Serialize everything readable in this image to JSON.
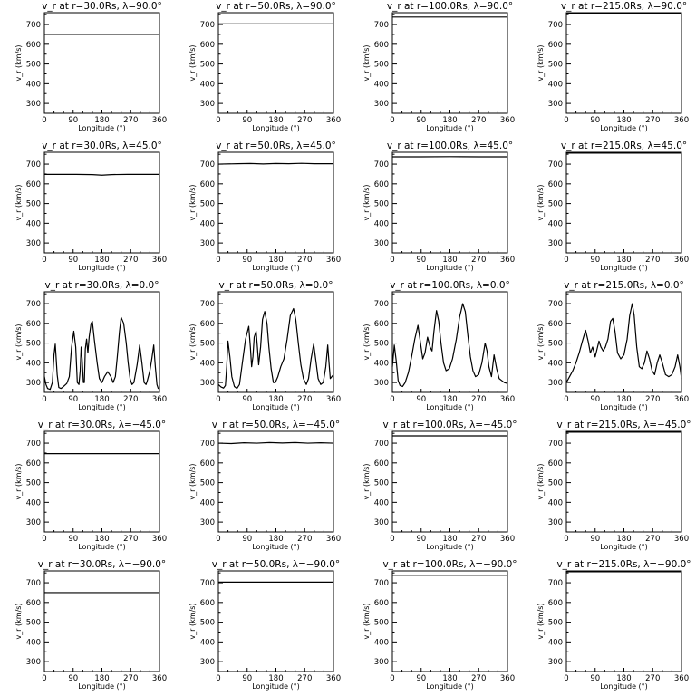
{
  "chart_data": {
    "type": "line",
    "layout": {
      "rows": 5,
      "cols": 4
    },
    "common": {
      "xlabel": "Longitude (°)",
      "ylabel": "v_r (km/s)",
      "xlim": [
        0,
        360
      ],
      "ylim": [
        250,
        760
      ],
      "xticks": [
        0,
        90,
        180,
        270,
        360
      ],
      "yticks": [
        300,
        400,
        500,
        600,
        700
      ]
    },
    "radii": [
      "30.0",
      "50.0",
      "100.0",
      "215.0"
    ],
    "latitudes": [
      "90.0",
      "45.0",
      "0.0",
      "-45.0",
      "-90.0"
    ],
    "panels": [
      {
        "title": "v_r at r=30.0Rs, λ=90.0°",
        "x": [
          0,
          360
        ],
        "y": [
          650,
          650
        ]
      },
      {
        "title": "v_r at r=50.0Rs, λ=90.0°",
        "x": [
          0,
          360
        ],
        "y": [
          703,
          703
        ]
      },
      {
        "title": "v_r at r=100.0Rs, λ=90.0°",
        "x": [
          0,
          360
        ],
        "y": [
          738,
          738
        ]
      },
      {
        "title": "v_r at r=215.0Rs, λ=90.0°",
        "x": [
          0,
          360
        ],
        "y": [
          756,
          756
        ]
      },
      {
        "title": "v_r at r=30.0Rs, λ=45.0°",
        "x": [
          0,
          100,
          150,
          180,
          210,
          260,
          360
        ],
        "y": [
          648,
          648,
          647,
          644,
          647,
          648,
          648
        ]
      },
      {
        "title": "v_r at r=50.0Rs, λ=45.0°",
        "x": [
          0,
          60,
          100,
          140,
          180,
          220,
          260,
          300,
          360
        ],
        "y": [
          700,
          702,
          703,
          701,
          703,
          702,
          704,
          702,
          702
        ]
      },
      {
        "title": "v_r at r=100.0Rs, λ=45.0°",
        "x": [
          0,
          90,
          180,
          270,
          360
        ],
        "y": [
          737,
          737,
          738,
          737,
          737
        ]
      },
      {
        "title": "v_r at r=215.0Rs, λ=45.0°",
        "x": [
          0,
          90,
          180,
          270,
          360
        ],
        "y": [
          756,
          756,
          756,
          756,
          756
        ]
      },
      {
        "title": "v_r at r=30.0Rs, λ=0.0°",
        "x": [
          0,
          5,
          10,
          18,
          25,
          30,
          34,
          40,
          45,
          52,
          60,
          70,
          78,
          85,
          92,
          98,
          103,
          108,
          112,
          115,
          118,
          122,
          125,
          128,
          132,
          136,
          140,
          146,
          150,
          156,
          165,
          172,
          180,
          188,
          198,
          208,
          215,
          222,
          228,
          235,
          240,
          248,
          256,
          262,
          268,
          274,
          280,
          290,
          298,
          305,
          312,
          318,
          322,
          330,
          336,
          342,
          347,
          352,
          356,
          360
        ],
        "y": [
          330,
          290,
          270,
          265,
          300,
          440,
          495,
          340,
          275,
          270,
          280,
          295,
          330,
          480,
          560,
          480,
          300,
          290,
          360,
          480,
          420,
          300,
          300,
          470,
          520,
          450,
          530,
          600,
          610,
          520,
          400,
          320,
          300,
          330,
          355,
          330,
          300,
          330,
          430,
          560,
          630,
          600,
          500,
          400,
          320,
          290,
          300,
          390,
          490,
          400,
          300,
          290,
          310,
          360,
          420,
          490,
          380,
          290,
          270,
          270
        ]
      },
      {
        "title": "v_r at r=50.0Rs, λ=0.0°",
        "x": [
          0,
          8,
          16,
          22,
          26,
          30,
          36,
          42,
          50,
          58,
          66,
          75,
          85,
          95,
          100,
          104,
          108,
          112,
          118,
          122,
          126,
          132,
          138,
          145,
          152,
          158,
          165,
          172,
          178,
          186,
          195,
          205,
          215,
          225,
          235,
          242,
          250,
          258,
          266,
          275,
          282,
          290,
          298,
          305,
          312,
          320,
          328,
          336,
          342,
          346,
          350,
          360
        ],
        "y": [
          290,
          278,
          272,
          285,
          380,
          510,
          430,
          330,
          280,
          270,
          290,
          400,
          520,
          585,
          480,
          380,
          430,
          530,
          560,
          480,
          390,
          480,
          620,
          660,
          600,
          480,
          370,
          300,
          300,
          330,
          380,
          420,
          520,
          640,
          675,
          620,
          500,
          390,
          320,
          290,
          320,
          420,
          495,
          410,
          320,
          290,
          300,
          380,
          490,
          400,
          320,
          340
        ]
      },
      {
        "title": "v_r at r=100.0Rs, λ=0.0°",
        "x": [
          0,
          6,
          12,
          18,
          24,
          32,
          40,
          50,
          60,
          70,
          80,
          88,
          95,
          102,
          110,
          118,
          124,
          130,
          138,
          145,
          152,
          160,
          168,
          178,
          188,
          200,
          210,
          220,
          228,
          236,
          244,
          252,
          260,
          270,
          280,
          290,
          296,
          302,
          310,
          318,
          326,
          334,
          342,
          350,
          360
        ],
        "y": [
          380,
          490,
          410,
          310,
          285,
          280,
          300,
          350,
          430,
          520,
          590,
          500,
          420,
          450,
          530,
          480,
          460,
          560,
          665,
          610,
          500,
          400,
          360,
          370,
          420,
          520,
          630,
          700,
          660,
          540,
          430,
          360,
          330,
          340,
          400,
          500,
          460,
          380,
          330,
          440,
          370,
          320,
          310,
          300,
          295
        ]
      },
      {
        "title": "v_r at r=215.0Rs, λ=0.0°",
        "x": [
          0,
          10,
          20,
          30,
          40,
          50,
          60,
          68,
          75,
          82,
          90,
          96,
          102,
          108,
          115,
          122,
          130,
          138,
          145,
          152,
          160,
          170,
          180,
          190,
          198,
          206,
          212,
          220,
          228,
          236,
          244,
          252,
          260,
          268,
          276,
          284,
          292,
          300,
          310,
          320,
          330,
          340,
          348,
          355,
          360
        ],
        "y": [
          300,
          330,
          360,
          400,
          450,
          510,
          565,
          510,
          450,
          480,
          430,
          470,
          510,
          480,
          460,
          480,
          520,
          610,
          625,
          560,
          450,
          420,
          440,
          520,
          640,
          700,
          640,
          480,
          380,
          370,
          400,
          460,
          420,
          360,
          340,
          400,
          440,
          400,
          340,
          330,
          340,
          380,
          440,
          380,
          320
        ]
      },
      {
        "title": "v_r at r=30.0Rs, λ=−45.0°",
        "x": [
          0,
          360
        ],
        "y": [
          647,
          647
        ]
      },
      {
        "title": "v_r at r=50.0Rs, λ=−45.0°",
        "x": [
          0,
          40,
          80,
          120,
          160,
          200,
          240,
          280,
          320,
          360
        ],
        "y": [
          700,
          698,
          702,
          700,
          703,
          701,
          703,
          700,
          702,
          700
        ]
      },
      {
        "title": "v_r at r=100.0Rs, λ=−45.0°",
        "x": [
          0,
          360
        ],
        "y": [
          737,
          737
        ]
      },
      {
        "title": "v_r at r=215.0Rs, λ=−45.0°",
        "x": [
          0,
          360
        ],
        "y": [
          756,
          756
        ]
      },
      {
        "title": "v_r at r=30.0Rs, λ=−90.0°",
        "x": [
          0,
          360
        ],
        "y": [
          650,
          650
        ]
      },
      {
        "title": "v_r at r=50.0Rs, λ=−90.0°",
        "x": [
          0,
          360
        ],
        "y": [
          703,
          703
        ]
      },
      {
        "title": "v_r at r=100.0Rs, λ=−90.0°",
        "x": [
          0,
          360
        ],
        "y": [
          738,
          738
        ]
      },
      {
        "title": "v_r at r=215.0Rs, λ=−90.0°",
        "x": [
          0,
          360
        ],
        "y": [
          756,
          756
        ]
      }
    ]
  }
}
